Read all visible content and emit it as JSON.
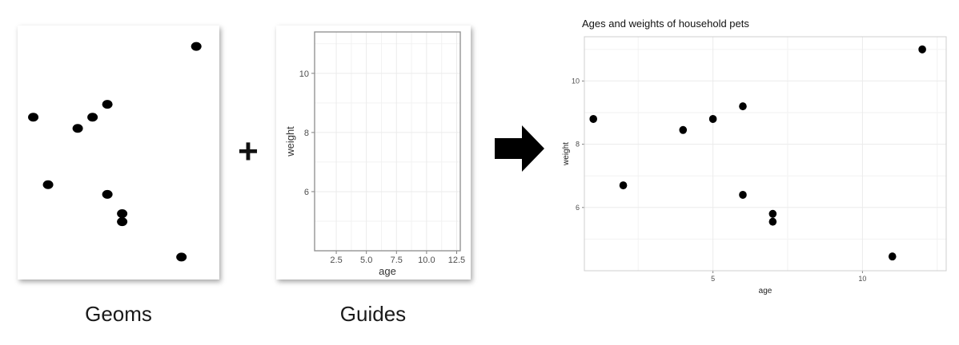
{
  "captions": {
    "geoms": "Geoms",
    "guides": "Guides"
  },
  "operators": {
    "plus": "+"
  },
  "icons": {
    "arrow": "arrow-right-icon"
  },
  "colors": {
    "point": "#000000",
    "grid": "#ebebeb",
    "axis_text": "#4d4d4d"
  },
  "chart_data": [
    {
      "type": "scatter",
      "title": "",
      "xlabel": "",
      "ylabel": "",
      "x": [
        1,
        2,
        4,
        5,
        6,
        6,
        7,
        7,
        11,
        12
      ],
      "y": [
        8.8,
        6.7,
        8.45,
        8.8,
        9.2,
        6.4,
        5.8,
        5.55,
        4.45,
        11.0
      ],
      "xlim": [
        0.7,
        12.8
      ],
      "ylim": [
        4.0,
        11.4
      ],
      "axes_visible": false,
      "grid": false
    },
    {
      "type": "scatter",
      "title": "",
      "xlabel": "age",
      "ylabel": "weight",
      "x": [],
      "y": [],
      "xlim": [
        0.7,
        12.8
      ],
      "ylim": [
        4.0,
        11.4
      ],
      "xticks": [
        "2.5",
        "5.0",
        "7.5",
        "10.0",
        "12.5"
      ],
      "xtick_values": [
        2.5,
        5.0,
        7.5,
        10.0,
        12.5
      ],
      "yticks": [
        "6",
        "8",
        "10"
      ],
      "ytick_values": [
        6,
        8,
        10
      ],
      "grid": true
    },
    {
      "type": "scatter",
      "title": "Ages and weights of household pets",
      "xlabel": "age",
      "ylabel": "weight",
      "x": [
        1,
        2,
        4,
        5,
        6,
        6,
        7,
        7,
        11,
        12
      ],
      "y": [
        8.8,
        6.7,
        8.45,
        8.8,
        9.2,
        6.4,
        5.8,
        5.55,
        4.45,
        11.0
      ],
      "xlim": [
        0.7,
        12.8
      ],
      "ylim": [
        4.0,
        11.4
      ],
      "xticks": [
        "5",
        "10"
      ],
      "xtick_values": [
        5,
        10
      ],
      "yticks": [
        "6",
        "8",
        "10"
      ],
      "ytick_values": [
        6,
        8,
        10
      ],
      "grid": true
    }
  ]
}
